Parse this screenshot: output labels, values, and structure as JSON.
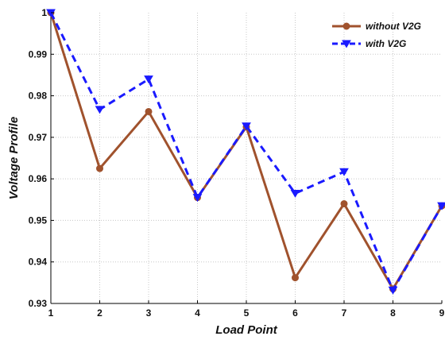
{
  "chart_data": {
    "type": "line",
    "title": "",
    "xlabel": "Load Point",
    "ylabel": "Voltage Profile",
    "x": [
      1,
      2,
      3,
      4,
      5,
      6,
      7,
      8,
      9
    ],
    "xticks": [
      "1",
      "2",
      "3",
      "4",
      "5",
      "6",
      "7",
      "8",
      "9"
    ],
    "yticks": [
      "0.93",
      "0.94",
      "0.95",
      "0.96",
      "0.97",
      "0.98",
      "0.99",
      "1"
    ],
    "yticks_values": [
      0.93,
      0.94,
      0.95,
      0.96,
      0.97,
      0.98,
      0.99,
      1.0
    ],
    "xlim": [
      1,
      9
    ],
    "ylim": [
      0.93,
      1.0
    ],
    "grid": true,
    "legend_position": "top-right",
    "series": [
      {
        "name": "without V2G",
        "color": "#a0522d",
        "line_style": "solid",
        "marker": "circle",
        "values": [
          1.0,
          0.9625,
          0.9762,
          0.9555,
          0.9725,
          0.9362,
          0.954,
          0.9335,
          0.9535
        ]
      },
      {
        "name": "with V2G",
        "color": "#1a1aff",
        "line_style": "dashed",
        "marker": "triangle-down",
        "values": [
          1.0,
          0.9767,
          0.984,
          0.9555,
          0.9727,
          0.9565,
          0.9617,
          0.9332,
          0.9535
        ]
      }
    ]
  }
}
